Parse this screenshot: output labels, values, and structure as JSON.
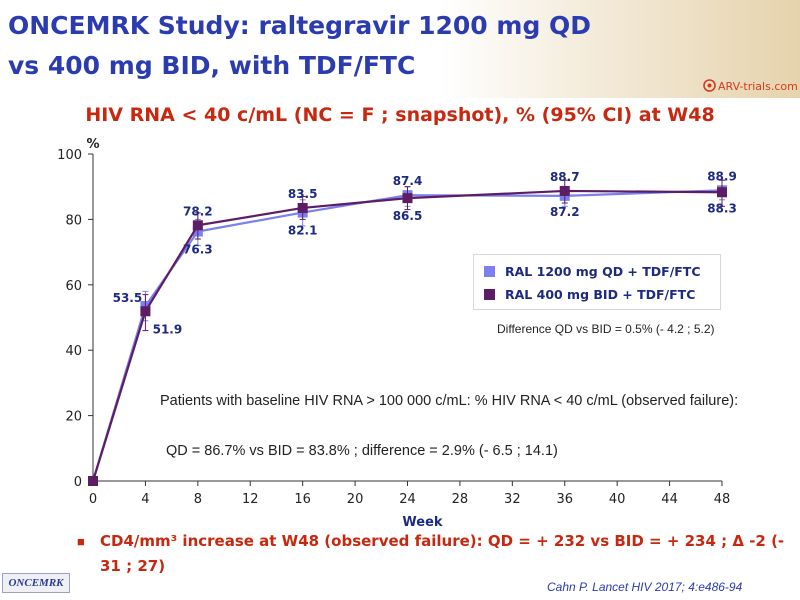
{
  "header": {
    "title_line1": "ONCEMRK Study: raltegravir 1200 mg QD",
    "title_line2": "vs 400 mg BID, with TDF/FTC",
    "logo_text": "ARV-trials.com"
  },
  "subtitle": "HIV RNA < 40 c/mL (NC = F ; snapshot), % (95% CI) at W48",
  "colors": {
    "title": "#2b3bb0",
    "accent_red": "#c8280f",
    "qd_series": "#7b7ff0",
    "bid_series": "#5c1d64"
  },
  "chart_data": {
    "type": "line",
    "xlabel": "Week",
    "ylabel": "%",
    "xlim": [
      0,
      48
    ],
    "ylim": [
      0,
      100
    ],
    "x_ticks": [
      0,
      4,
      8,
      12,
      16,
      20,
      24,
      28,
      32,
      36,
      40,
      44,
      48
    ],
    "y_ticks": [
      0,
      20,
      40,
      60,
      80,
      100
    ],
    "grid": false,
    "legend_position": "right",
    "series": [
      {
        "name": "RAL 1200 mg QD + TDF/FTC",
        "color": "#7b7ff0",
        "marker": "square",
        "x": [
          0,
          4,
          8,
          16,
          24,
          36,
          48
        ],
        "y": [
          0,
          53.5,
          76.3,
          82.1,
          87.4,
          87.2,
          88.9
        ],
        "labels": [
          "",
          "53.5",
          "76.3",
          "82.1",
          "87.4",
          "87.2",
          "88.9"
        ],
        "ci_low": [
          null,
          49,
          72,
          78,
          84,
          84,
          86
        ],
        "ci_high": [
          null,
          58,
          80,
          86,
          90,
          90,
          92
        ]
      },
      {
        "name": "RAL 400 mg BID + TDF/FTC",
        "color": "#5c1d64",
        "marker": "square",
        "x": [
          0,
          4,
          8,
          16,
          24,
          36,
          48
        ],
        "y": [
          0,
          51.9,
          78.2,
          83.5,
          86.5,
          88.7,
          88.3
        ],
        "labels": [
          "",
          "51.9",
          "78.2",
          "83.5",
          "86.5",
          "88.7",
          "88.3"
        ],
        "ci_low": [
          null,
          46,
          74,
          80,
          83,
          85,
          84
        ],
        "ci_high": [
          null,
          57,
          82,
          87,
          90,
          92,
          92
        ]
      }
    ]
  },
  "legend": {
    "qd_label": "RAL 1200 mg QD + TDF/FTC",
    "bid_label": "RAL 400 mg BID + TDF/FTC"
  },
  "notes": {
    "difference": "Difference QD vs BID = 0.5% (- 4.2 ; 5.2)",
    "baseline": "Patients with baseline HIV RNA > 100 000 c/mL: % HIV RNA < 40 c/mL (observed failure):",
    "qd_vs_bid": "QD = 86.7% vs BID = 83.8% ; difference = 2.9% (- 6.5 ; 14.1)",
    "cd4": "CD4/mm³ increase at W48 (observed failure): QD = + 232 vs BID = + 234 ; Δ -2 (- 31 ; 27)"
  },
  "footer": {
    "study_badge": "ONCEMRK",
    "citation": "Cahn P. Lancet HIV 2017; 4:e486-94"
  }
}
